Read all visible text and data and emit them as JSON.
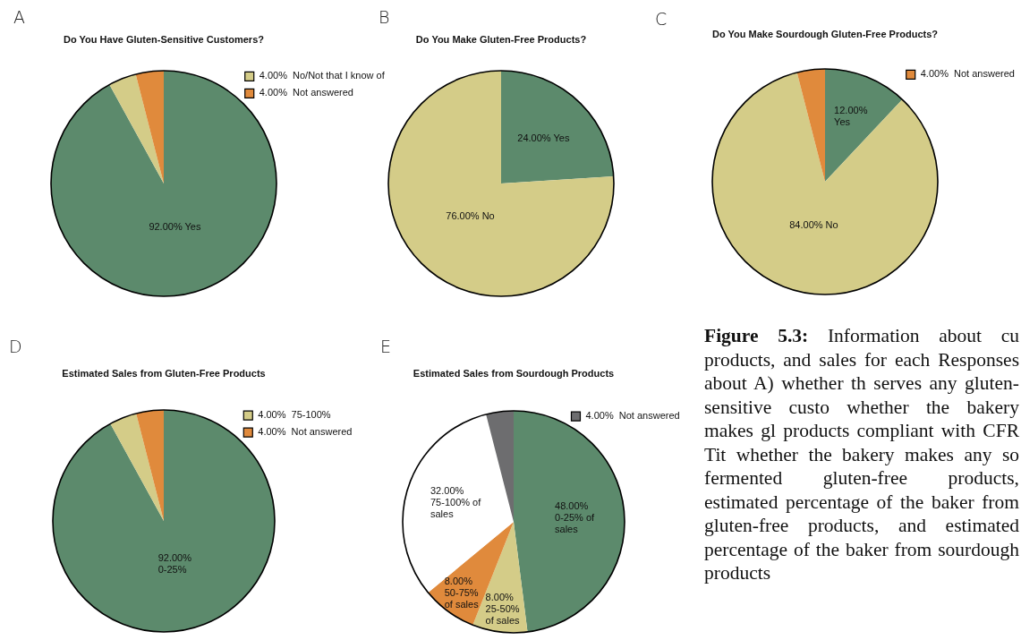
{
  "chart_data": [
    {
      "type": "pie",
      "title": "Do You Have Gluten-Sensitive Customers?",
      "annotations": [
        "A"
      ],
      "legend": "top right",
      "categories": [
        "Yes",
        "No/Not that I know of",
        "Not answered"
      ],
      "values": [
        92,
        4,
        4
      ],
      "value_labels": [
        "92.00%",
        "4.00%",
        "4.00%"
      ],
      "colors": [
        "#5c8a6c",
        "#d4cc88",
        "#e08a3c"
      ]
    },
    {
      "type": "pie",
      "title": "Do You Make Gluten-Free Products?",
      "annotations": [
        "B"
      ],
      "categories": [
        "Yes",
        "No"
      ],
      "values": [
        24,
        76
      ],
      "value_labels": [
        "24.00%",
        "76.00%"
      ],
      "colors": [
        "#5c8a6c",
        "#d4cc88"
      ]
    },
    {
      "type": "pie",
      "title": "Do You Make Sourdough Gluten-Free Products?",
      "annotations": [
        "C"
      ],
      "legend": "top right",
      "categories": [
        "Yes",
        "No",
        "Not answered"
      ],
      "values": [
        12,
        84,
        4
      ],
      "value_labels": [
        "12.00%",
        "84.00%",
        "4.00%"
      ],
      "colors": [
        "#5c8a6c",
        "#d4cc88",
        "#e08a3c"
      ]
    },
    {
      "type": "pie",
      "title": "Estimated Sales from Gluten-Free Products",
      "annotations": [
        "D"
      ],
      "legend": "top right",
      "categories": [
        "0-25%",
        "75-100%",
        "Not answered"
      ],
      "values": [
        92,
        4,
        4
      ],
      "value_labels": [
        "92.00%",
        "4.00%",
        "4.00%"
      ],
      "colors": [
        "#5c8a6c",
        "#d4cc88",
        "#e08a3c"
      ]
    },
    {
      "type": "pie",
      "title": "Estimated Sales from Sourdough Products",
      "annotations": [
        "E"
      ],
      "legend": "top right",
      "categories": [
        "0-25% of sales",
        "25-50% of sales",
        "50-75% of sales",
        "75-100% of sales",
        "Not answered"
      ],
      "values": [
        48,
        8,
        8,
        32,
        4
      ],
      "value_labels": [
        "48.00%",
        "8.00%",
        "8.00%",
        "32.00%",
        "4.00%"
      ],
      "colors": [
        "#5c8a6c",
        "#d4cc88",
        "#e08a3c",
        "#ffffff",
        "#6d6d6f"
      ]
    },
    {
      "type": "other",
      "title": "Figure 5.3:",
      "annotations": [
        "Information about cu products, and sales for each Responses about A) whether th serves any gluten-sensitive custo whether the bakery makes gl products compliant with CFR Tit whether the bakery makes any so fermented gluten-free products, estimated percentage of the baker from gluten-free products, and estimated percentage of the baker from sourdough products"
      ]
    }
  ]
}
